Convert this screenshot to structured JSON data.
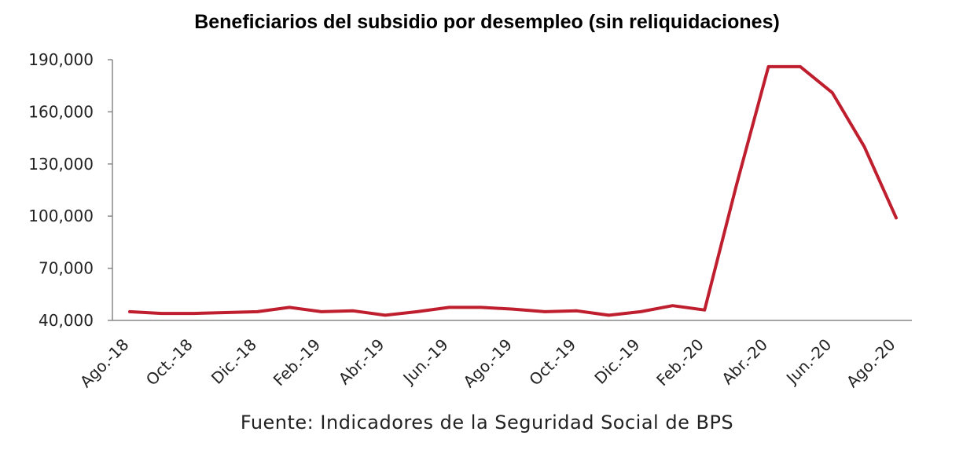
{
  "chart_data": {
    "type": "line",
    "title": "Beneficiarios del subsidio por desempleo (sin reliquidaciones)",
    "xlabel": "",
    "ylabel": "",
    "source": "Fuente: Indicadores de la Seguridad Social de BPS",
    "ylim": [
      40000,
      190000
    ],
    "yticks": [
      "40,000",
      "70,000",
      "100,000",
      "130,000",
      "160,000",
      "190,000"
    ],
    "ytick_values": [
      40000,
      70000,
      100000,
      130000,
      160000,
      190000
    ],
    "x": [
      "Ago.-18",
      "Sep.-18",
      "Oct.-18",
      "Nov.-18",
      "Dic.-18",
      "Ene.-19",
      "Feb.-19",
      "Mar.-19",
      "Abr.-19",
      "May.-19",
      "Jun.-19",
      "Jul.-19",
      "Ago.-19",
      "Sep.-19",
      "Oct.-19",
      "Nov.-19",
      "Dic.-19",
      "Ene.-20",
      "Feb.-20",
      "Mar.-20",
      "Abr.-20",
      "May.-20",
      "Jun.-20",
      "Jul.-20",
      "Ago.-20"
    ],
    "xtick_labels": [
      "Ago.-18",
      "Oct.-18",
      "Dic.-18",
      "Feb.-19",
      "Abr.-19",
      "Jun.-19",
      "Ago.-19",
      "Oct.-19",
      "Dic.-19",
      "Feb.-20",
      "Abr.-20",
      "Jun.-20",
      "Ago.-20"
    ],
    "series": [
      {
        "values": [
          45000,
          44000,
          44000,
          44500,
          45000,
          47500,
          45000,
          45500,
          43000,
          45000,
          47500,
          47500,
          46500,
          45000,
          45500,
          43000,
          45000,
          48500,
          46000,
          118000,
          186000,
          186000,
          171000,
          140000,
          99000
        ],
        "color": "#be1e2d"
      }
    ],
    "grid": false,
    "legend": "none"
  }
}
